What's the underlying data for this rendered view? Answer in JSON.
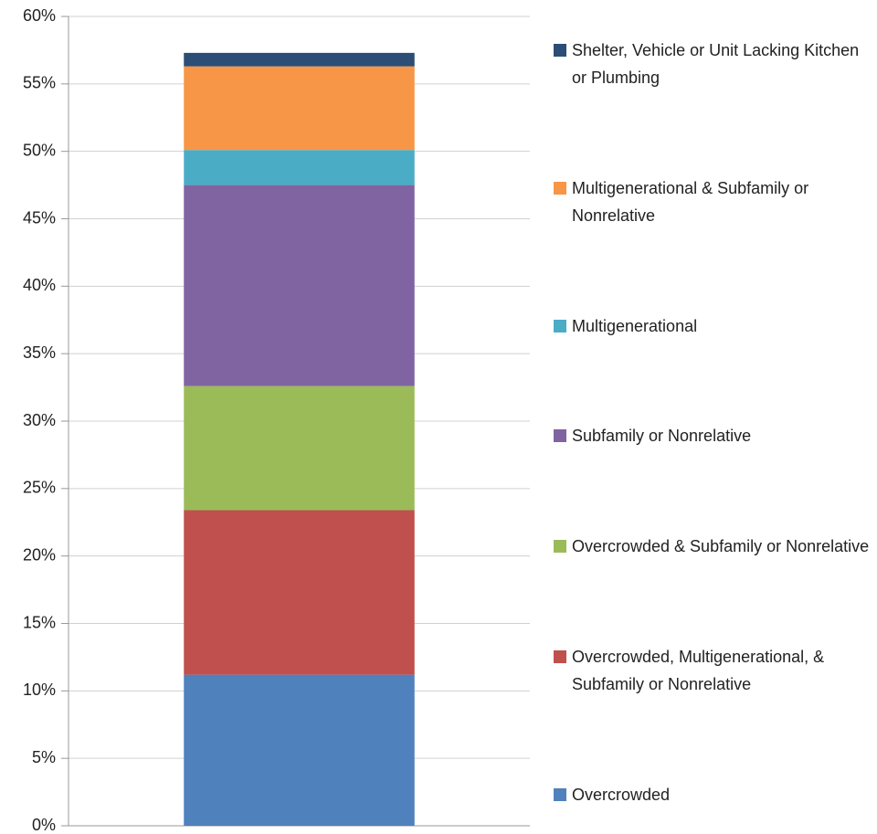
{
  "chart_data": {
    "type": "stacked_bar",
    "categories": [
      null
    ],
    "series": [
      {
        "name": "Overcrowded",
        "color": "#4f81bd",
        "values": [
          11.2
        ]
      },
      {
        "name": "Overcrowded, Multigenerational, & Subfamily or Nonrelative",
        "color": "#c0504d",
        "values": [
          12.2
        ]
      },
      {
        "name": "Overcrowded & Subfamily or Nonrelative",
        "color": "#9bbb59",
        "values": [
          9.2
        ]
      },
      {
        "name": "Subfamily or Nonrelative",
        "color": "#8064a2",
        "values": [
          14.9
        ]
      },
      {
        "name": "Multigenerational",
        "color": "#4bacc6",
        "values": [
          2.6
        ]
      },
      {
        "name": "Multigenerational & Subfamily or Nonrelative",
        "color": "#f79646",
        "values": [
          6.2
        ]
      },
      {
        "name": "Shelter, Vehicle or Unit Lacking Kitchen or Plumbing",
        "color": "#2c4d75",
        "values": [
          1.0
        ]
      }
    ],
    "ylim": [
      0,
      60
    ],
    "yticks": [
      {
        "value": 0,
        "label": "0%"
      },
      {
        "value": 5,
        "label": "5%"
      },
      {
        "value": 10,
        "label": "10%"
      },
      {
        "value": 15,
        "label": "15%"
      },
      {
        "value": 20,
        "label": "20%"
      },
      {
        "value": 25,
        "label": "25%"
      },
      {
        "value": 30,
        "label": "30%"
      },
      {
        "value": 35,
        "label": "35%"
      },
      {
        "value": 40,
        "label": "40%"
      },
      {
        "value": 45,
        "label": "45%"
      },
      {
        "value": 50,
        "label": "50%"
      },
      {
        "value": 55,
        "label": "55%"
      },
      {
        "value": 60,
        "label": "60%"
      }
    ],
    "grid": true,
    "legend": "right"
  }
}
